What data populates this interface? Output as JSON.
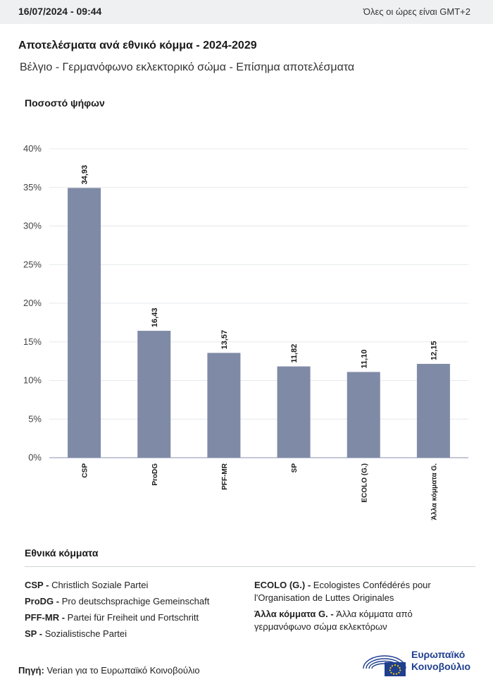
{
  "header": {
    "timestamp": "16/07/2024 - 09:44",
    "timezone_note": "Όλες οι ώρες είναι GMT+2"
  },
  "title": "Αποτελέσματα ανά εθνικό κόμμα - 2024-2029",
  "subtitle": "Βέλγιο - Γερμανόφωνο εκλεκτορικό σώμα - Επίσημα αποτελέσματα",
  "chart_data": {
    "type": "bar",
    "ylabel": "Ποσοστό ψήφων",
    "categories": [
      "CSP",
      "ProDG",
      "PFF-MR",
      "SP",
      "ECOLO (G.)",
      "Άλλα κόμματα G."
    ],
    "values": [
      34.93,
      16.43,
      13.57,
      11.82,
      11.1,
      12.15
    ],
    "value_labels": [
      "34,93",
      "16,43",
      "13,57",
      "11,82",
      "11,10",
      "12,15"
    ],
    "ylim": [
      0,
      40
    ],
    "yticks": [
      "0%",
      "5%",
      "10%",
      "15%",
      "20%",
      "25%",
      "30%",
      "35%",
      "40%"
    ],
    "grid": true,
    "bar_color": "#7f8aa6"
  },
  "legend": {
    "title": "Εθνικά κόμματα",
    "col1": [
      {
        "abbr": "CSP -",
        "name": "Christlich Soziale Partei"
      },
      {
        "abbr": "ProDG -",
        "name": "Pro deutschsprachige Gemeinschaft"
      },
      {
        "abbr": "PFF-MR -",
        "name": "Partei für Freiheit und Fortschritt"
      },
      {
        "abbr": "SP -",
        "name": "Sozialistische Partei"
      }
    ],
    "col2": [
      {
        "abbr": "ECOLO (G.) -",
        "name": "Ecologistes Confédérés pour l'Organisation de Luttes Originales"
      },
      {
        "abbr": "Άλλα κόμματα G. -",
        "name": "Άλλα κόμματα από γερμανόφωνο σώμα εκλεκτόρων"
      }
    ]
  },
  "source": {
    "label": "Πηγή:",
    "text": "Verian για το Ευρωπαϊκό Κοινοβούλιο"
  },
  "logo": {
    "line1": "Ευρωπαϊκό",
    "line2": "Κοινοβούλιο",
    "color": "#1f3f8f"
  }
}
